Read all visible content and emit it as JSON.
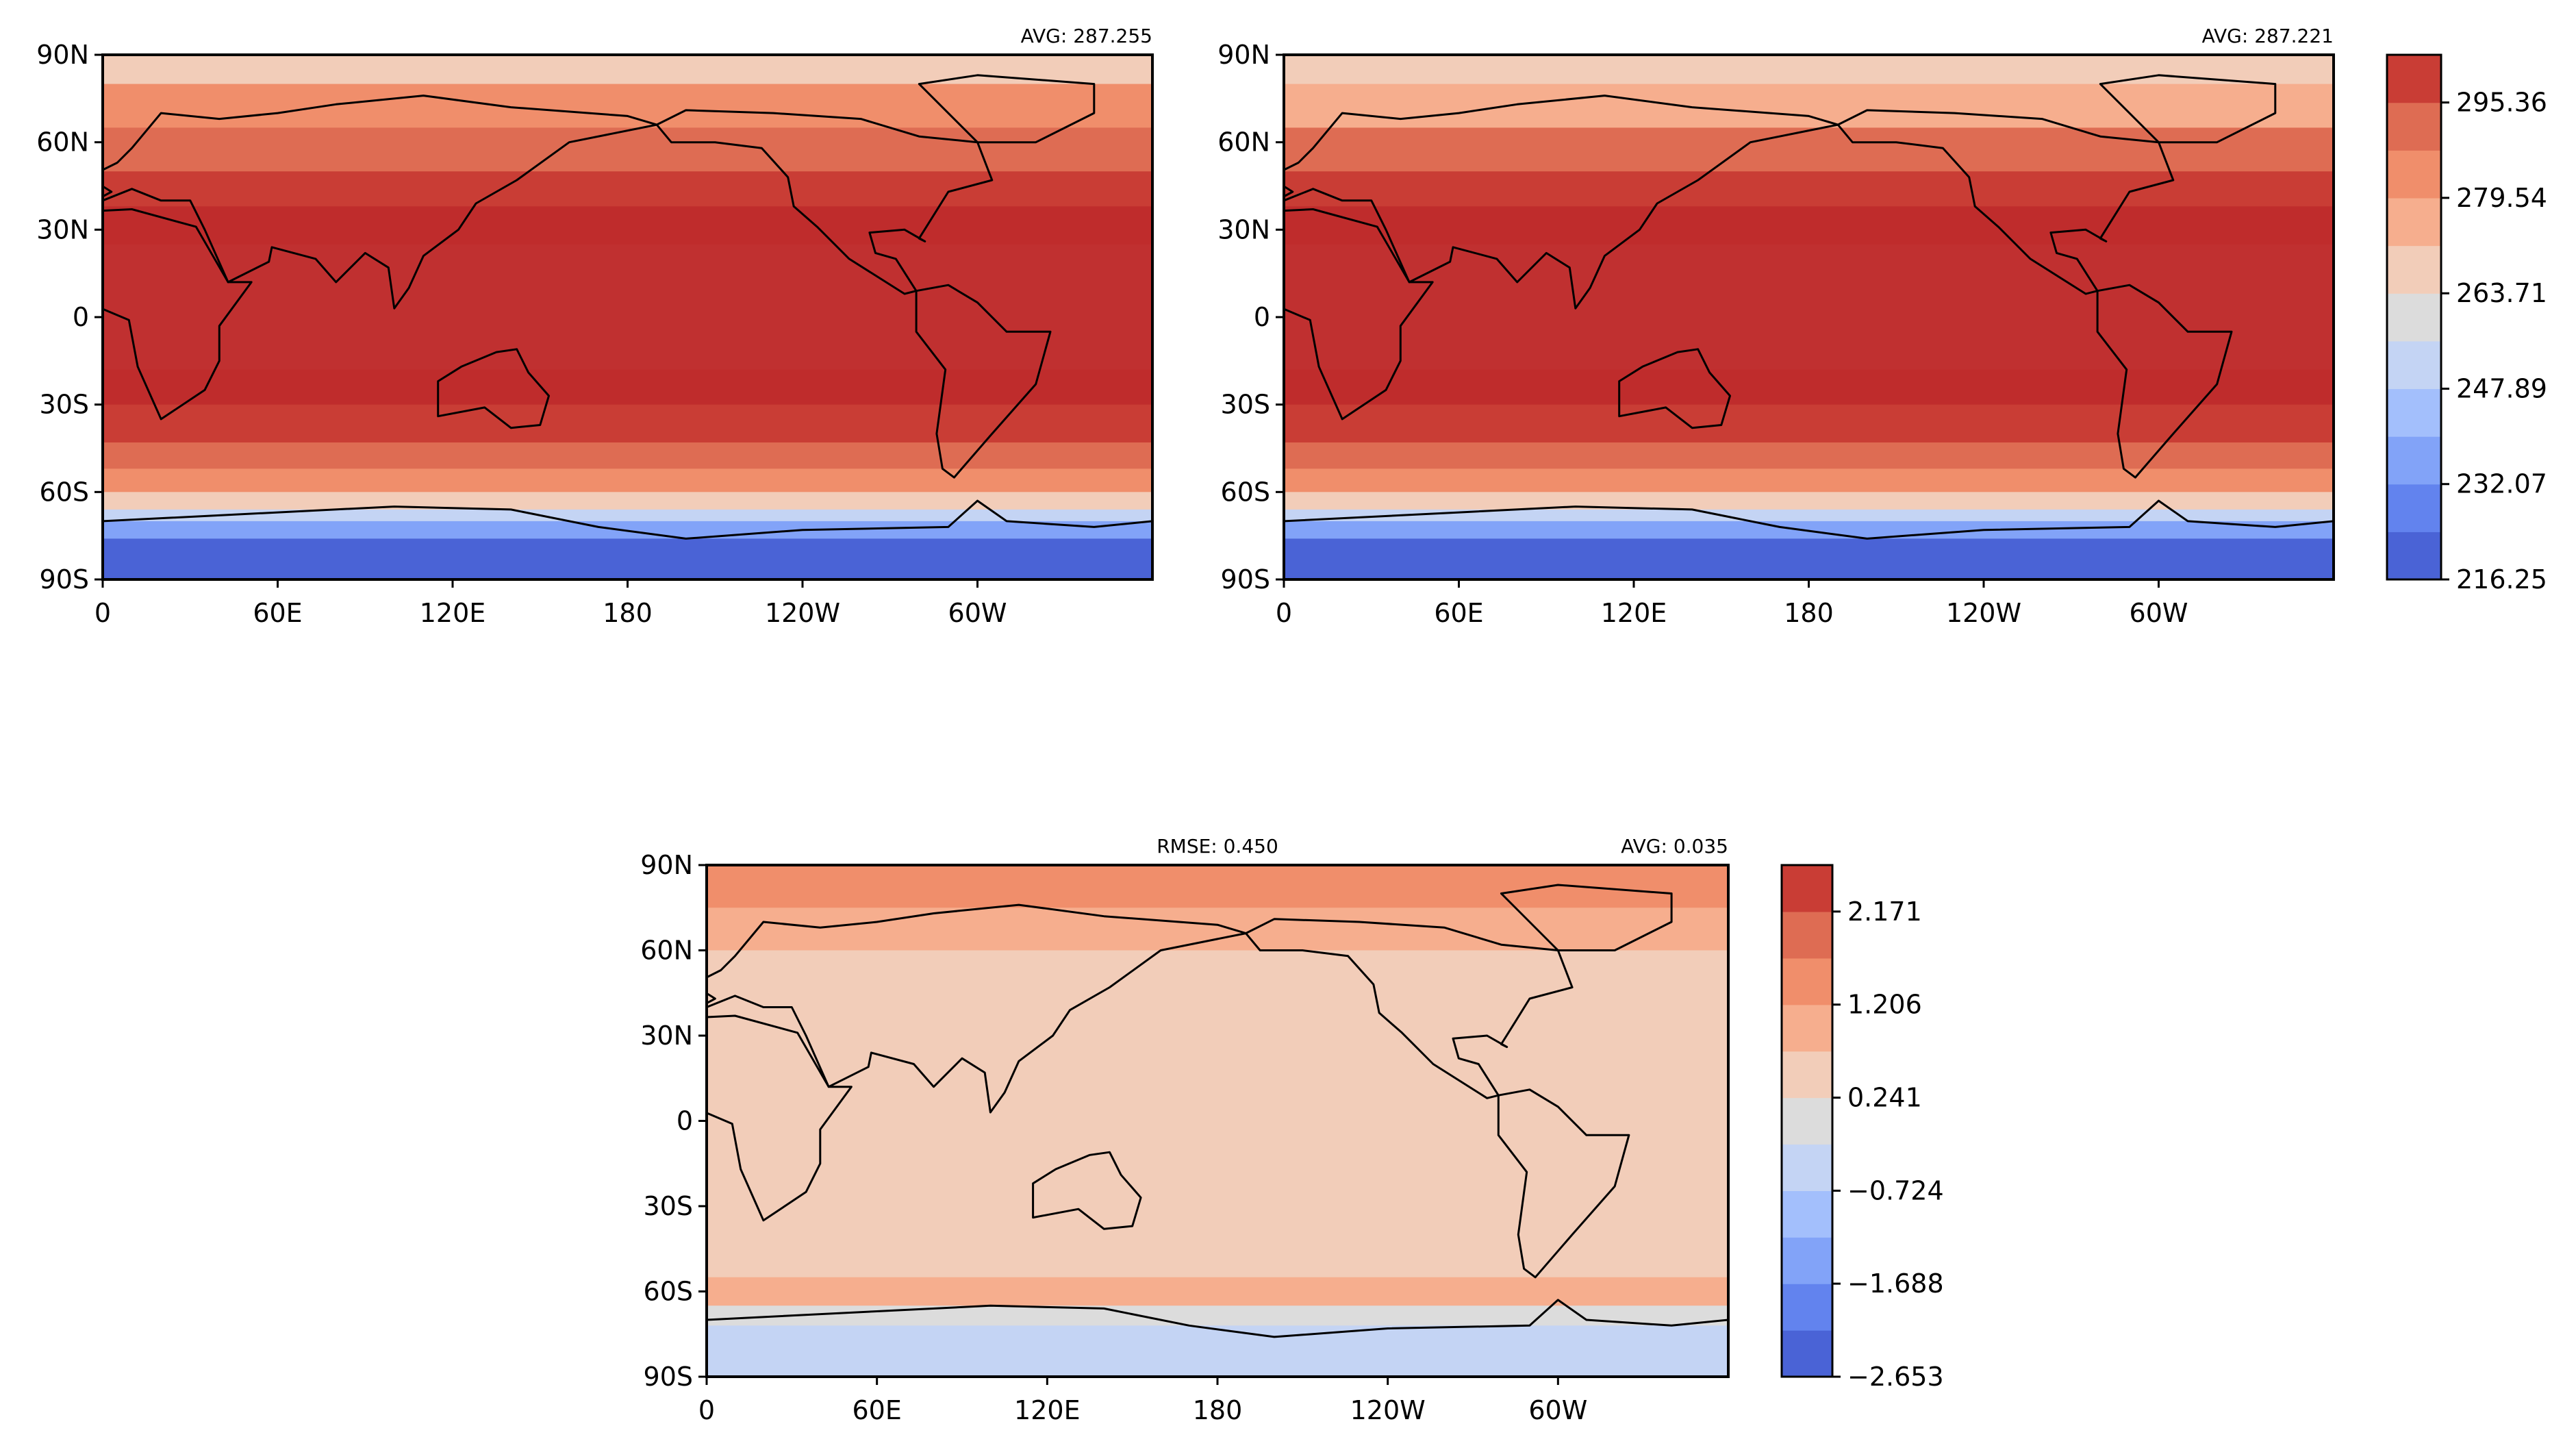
{
  "chart_data": [
    {
      "type": "heatmap",
      "name": "top-left map",
      "right_label": "AVG: 287.255",
      "left_label": "",
      "x_ticks": [
        "0",
        "60E",
        "120E",
        "180",
        "120W",
        "60W"
      ],
      "y_ticks": [
        "90N",
        "60N",
        "30N",
        "0",
        "30S",
        "60S",
        "90S"
      ],
      "bands": [
        {
          "lat": [
            90,
            80
          ],
          "level": 6
        },
        {
          "lat": [
            80,
            65
          ],
          "level": 8
        },
        {
          "lat": [
            65,
            50
          ],
          "level": 9
        },
        {
          "lat": [
            50,
            38
          ],
          "level": 10
        },
        {
          "lat": [
            38,
            25
          ],
          "level": 11
        },
        {
          "lat": [
            25,
            -18
          ],
          "level": 12
        },
        {
          "lat": [
            -18,
            -30
          ],
          "level": 11
        },
        {
          "lat": [
            -30,
            -43
          ],
          "level": 10
        },
        {
          "lat": [
            -43,
            -52
          ],
          "level": 9
        },
        {
          "lat": [
            -52,
            -60
          ],
          "level": 8
        },
        {
          "lat": [
            -60,
            -66
          ],
          "level": 6
        },
        {
          "lat": [
            -66,
            -70
          ],
          "level": 4
        },
        {
          "lat": [
            -70,
            -76
          ],
          "level": 2
        },
        {
          "lat": [
            -76,
            -90
          ],
          "level": 0
        }
      ]
    },
    {
      "type": "heatmap",
      "name": "top-right map",
      "right_label": "AVG: 287.221",
      "left_label": "",
      "x_ticks": [
        "0",
        "60E",
        "120E",
        "180",
        "120W",
        "60W"
      ],
      "y_ticks": [
        "90N",
        "60N",
        "30N",
        "0",
        "30S",
        "60S",
        "90S"
      ],
      "bands": [
        {
          "lat": [
            90,
            80
          ],
          "level": 6
        },
        {
          "lat": [
            80,
            65
          ],
          "level": 7
        },
        {
          "lat": [
            65,
            50
          ],
          "level": 9
        },
        {
          "lat": [
            50,
            38
          ],
          "level": 10
        },
        {
          "lat": [
            38,
            25
          ],
          "level": 11
        },
        {
          "lat": [
            25,
            -18
          ],
          "level": 12
        },
        {
          "lat": [
            -18,
            -30
          ],
          "level": 11
        },
        {
          "lat": [
            -30,
            -43
          ],
          "level": 10
        },
        {
          "lat": [
            -43,
            -52
          ],
          "level": 9
        },
        {
          "lat": [
            -52,
            -60
          ],
          "level": 8
        },
        {
          "lat": [
            -60,
            -66
          ],
          "level": 6
        },
        {
          "lat": [
            -66,
            -70
          ],
          "level": 4
        },
        {
          "lat": [
            -70,
            -76
          ],
          "level": 2
        },
        {
          "lat": [
            -76,
            -90
          ],
          "level": 0
        }
      ]
    },
    {
      "type": "heatmap",
      "name": "difference map",
      "right_label": "AVG: 0.035",
      "left_label": "RMSE: 0.450",
      "x_ticks": [
        "0",
        "60E",
        "120E",
        "180",
        "120W",
        "60W"
      ],
      "y_ticks": [
        "90N",
        "60N",
        "30N",
        "0",
        "30S",
        "60S",
        "90S"
      ],
      "bands": [
        {
          "lat": [
            90,
            75
          ],
          "level": 8
        },
        {
          "lat": [
            75,
            60
          ],
          "level": 7
        },
        {
          "lat": [
            60,
            -55
          ],
          "level": 6
        },
        {
          "lat": [
            -55,
            -65
          ],
          "level": 7
        },
        {
          "lat": [
            -65,
            -72
          ],
          "level": 5
        },
        {
          "lat": [
            -72,
            -90
          ],
          "level": 4
        }
      ]
    }
  ],
  "colorbars": [
    {
      "ticks": [
        "295.36",
        "279.54",
        "263.71",
        "247.89",
        "232.07",
        "216.25"
      ],
      "tick_values": [
        295.36,
        279.54,
        263.71,
        247.89,
        232.07,
        216.25
      ],
      "range": [
        216.25,
        303.27
      ]
    },
    {
      "ticks": [
        "2.171",
        "1.206",
        "0.241",
        "−0.724",
        "−1.688",
        "−2.653"
      ],
      "tick_values": [
        2.171,
        1.206,
        0.241,
        -0.724,
        -1.688,
        -2.653
      ],
      "range": [
        -2.653,
        2.653
      ]
    }
  ],
  "palette": [
    "#4a63d6",
    "#6283ee",
    "#82a3f8",
    "#a3bffc",
    "#c4d4f4",
    "#dcdcdc",
    "#f2cdb9",
    "#f6ae8e",
    "#f08e6b",
    "#de6c53",
    "#c93d35",
    "#bf2c2c",
    "#c03030"
  ]
}
